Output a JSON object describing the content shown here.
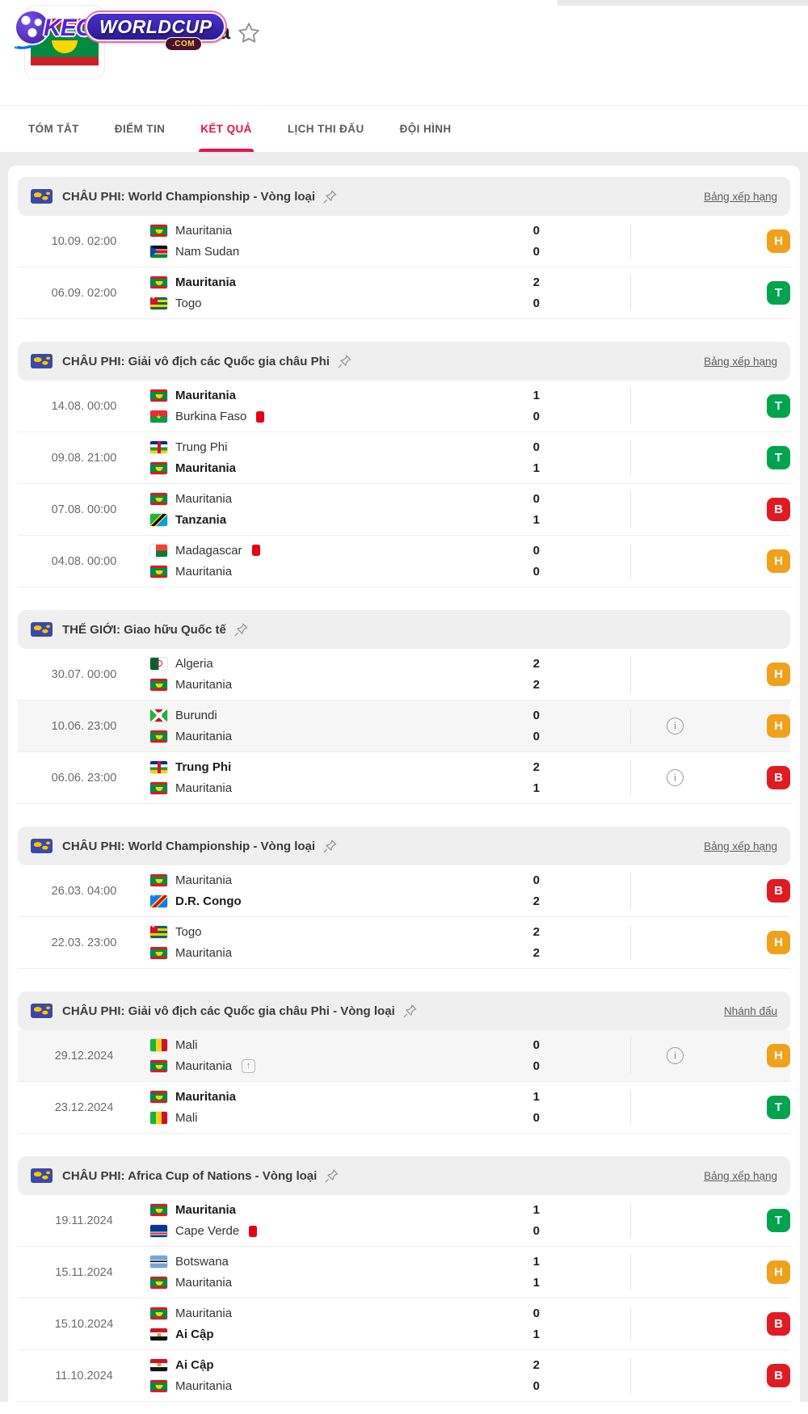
{
  "logo": {
    "keo": "KEO",
    "worldcup": "WORLDCUP",
    "com": ".COM"
  },
  "header": {
    "team_name": "Mauritania"
  },
  "icons": {
    "favorite": "star-outline-icon",
    "pin": "pushpin-icon",
    "info": "info-circle-icon",
    "red_card": "red-card-icon",
    "promotion": "up-arrow-box-icon",
    "region": "world-map-icon"
  },
  "colors": {
    "accent": "#ed0f4f",
    "section_bg": "#efefef",
    "page_band": "#ececec"
  },
  "badge_colors": {
    "H": "#f0a11c",
    "T": "#00a44e",
    "B": "#e11b22"
  },
  "badge_legend": {
    "T": "win",
    "H": "draw",
    "B": "loss"
  },
  "tabs": [
    {
      "label": "TÓM TẮT",
      "active": false
    },
    {
      "label": "ĐIỂM TIN",
      "active": false
    },
    {
      "label": "KẾT QUẢ",
      "active": true
    },
    {
      "label": "LỊCH THI ĐẤU",
      "active": false
    },
    {
      "label": "ĐỘI HÌNH",
      "active": false
    }
  ],
  "sections": [
    {
      "title": "CHÂU PHI: World Championship - Vòng loại",
      "link": "Bảng xếp hạng",
      "matches": [
        {
          "date": "10.09. 02:00",
          "home": {
            "name": "Mauritania",
            "flag": "mr",
            "bold": false,
            "red_card": false,
            "promo": false
          },
          "away": {
            "name": "Nam Sudan",
            "flag": "ss",
            "bold": false,
            "red_card": false,
            "promo": false
          },
          "home_score": "0",
          "away_score": "0",
          "info": false,
          "result": "H",
          "highlight": false
        },
        {
          "date": "06.09. 02:00",
          "home": {
            "name": "Mauritania",
            "flag": "mr",
            "bold": true,
            "red_card": false,
            "promo": false
          },
          "away": {
            "name": "Togo",
            "flag": "tg",
            "bold": false,
            "red_card": false,
            "promo": false
          },
          "home_score": "2",
          "away_score": "0",
          "info": false,
          "result": "T",
          "highlight": false
        }
      ]
    },
    {
      "title": "CHÂU PHI: Giải vô địch các Quốc gia châu Phi",
      "link": "Bảng xếp hạng",
      "matches": [
        {
          "date": "14.08. 00:00",
          "home": {
            "name": "Mauritania",
            "flag": "mr",
            "bold": true,
            "red_card": false,
            "promo": false
          },
          "away": {
            "name": "Burkina Faso",
            "flag": "bf",
            "bold": false,
            "red_card": true,
            "promo": false
          },
          "home_score": "1",
          "away_score": "0",
          "info": false,
          "result": "T",
          "highlight": false
        },
        {
          "date": "09.08. 21:00",
          "home": {
            "name": "Trung Phi",
            "flag": "cf",
            "bold": false,
            "red_card": false,
            "promo": false
          },
          "away": {
            "name": "Mauritania",
            "flag": "mr",
            "bold": true,
            "red_card": false,
            "promo": false
          },
          "home_score": "0",
          "away_score": "1",
          "info": false,
          "result": "T",
          "highlight": false
        },
        {
          "date": "07.08. 00:00",
          "home": {
            "name": "Mauritania",
            "flag": "mr",
            "bold": false,
            "red_card": false,
            "promo": false
          },
          "away": {
            "name": "Tanzania",
            "flag": "tz",
            "bold": true,
            "red_card": false,
            "promo": false
          },
          "home_score": "0",
          "away_score": "1",
          "info": false,
          "result": "B",
          "highlight": false
        },
        {
          "date": "04.08. 00:00",
          "home": {
            "name": "Madagascar",
            "flag": "mg",
            "bold": false,
            "red_card": true,
            "promo": false
          },
          "away": {
            "name": "Mauritania",
            "flag": "mr",
            "bold": false,
            "red_card": false,
            "promo": false
          },
          "home_score": "0",
          "away_score": "0",
          "info": false,
          "result": "H",
          "highlight": false
        }
      ]
    },
    {
      "title": "THẾ GIỚI: Giao hữu Quốc tế",
      "link": null,
      "matches": [
        {
          "date": "30.07. 00:00",
          "home": {
            "name": "Algeria",
            "flag": "dz",
            "bold": false,
            "red_card": false,
            "promo": false
          },
          "away": {
            "name": "Mauritania",
            "flag": "mr",
            "bold": false,
            "red_card": false,
            "promo": false
          },
          "home_score": "2",
          "away_score": "2",
          "info": false,
          "result": "H",
          "highlight": false
        },
        {
          "date": "10.06. 23:00",
          "home": {
            "name": "Burundi",
            "flag": "bi",
            "bold": false,
            "red_card": false,
            "promo": false
          },
          "away": {
            "name": "Mauritania",
            "flag": "mr",
            "bold": false,
            "red_card": false,
            "promo": false
          },
          "home_score": "0",
          "away_score": "0",
          "info": true,
          "result": "H",
          "highlight": true
        },
        {
          "date": "06.06. 23:00",
          "home": {
            "name": "Trung Phi",
            "flag": "cf",
            "bold": true,
            "red_card": false,
            "promo": false
          },
          "away": {
            "name": "Mauritania",
            "flag": "mr",
            "bold": false,
            "red_card": false,
            "promo": false
          },
          "home_score": "2",
          "away_score": "1",
          "info": true,
          "result": "B",
          "highlight": false
        }
      ]
    },
    {
      "title": "CHÂU PHI: World Championship - Vòng loại",
      "link": "Bảng xếp hạng",
      "matches": [
        {
          "date": "26.03. 04:00",
          "home": {
            "name": "Mauritania",
            "flag": "mr",
            "bold": false,
            "red_card": false,
            "promo": false
          },
          "away": {
            "name": "D.R. Congo",
            "flag": "cd",
            "bold": true,
            "red_card": false,
            "promo": false
          },
          "home_score": "0",
          "away_score": "2",
          "info": false,
          "result": "B",
          "highlight": false
        },
        {
          "date": "22.03. 23:00",
          "home": {
            "name": "Togo",
            "flag": "tg",
            "bold": false,
            "red_card": false,
            "promo": false
          },
          "away": {
            "name": "Mauritania",
            "flag": "mr",
            "bold": false,
            "red_card": false,
            "promo": false
          },
          "home_score": "2",
          "away_score": "2",
          "info": false,
          "result": "H",
          "highlight": false
        }
      ]
    },
    {
      "title": "CHÂU PHI: Giải vô địch các Quốc gia châu Phi - Vòng loại",
      "link": "Nhánh đấu",
      "matches": [
        {
          "date": "29.12.2024",
          "home": {
            "name": "Mali",
            "flag": "ml",
            "bold": false,
            "red_card": false,
            "promo": false
          },
          "away": {
            "name": "Mauritania",
            "flag": "mr",
            "bold": false,
            "red_card": false,
            "promo": true
          },
          "home_score": "0",
          "away_score": "0",
          "info": true,
          "result": "H",
          "highlight": true
        },
        {
          "date": "23.12.2024",
          "home": {
            "name": "Mauritania",
            "flag": "mr",
            "bold": true,
            "red_card": false,
            "promo": false
          },
          "away": {
            "name": "Mali",
            "flag": "ml",
            "bold": false,
            "red_card": false,
            "promo": false
          },
          "home_score": "1",
          "away_score": "0",
          "info": false,
          "result": "T",
          "highlight": false
        }
      ]
    },
    {
      "title": "CHÂU PHI: Africa Cup of Nations - Vòng loại",
      "link": "Bảng xếp hạng",
      "matches": [
        {
          "date": "19.11.2024",
          "home": {
            "name": "Mauritania",
            "flag": "mr",
            "bold": true,
            "red_card": false,
            "promo": false
          },
          "away": {
            "name": "Cape Verde",
            "flag": "cv",
            "bold": false,
            "red_card": true,
            "promo": false
          },
          "home_score": "1",
          "away_score": "0",
          "info": false,
          "result": "T",
          "highlight": false
        },
        {
          "date": "15.11.2024",
          "home": {
            "name": "Botswana",
            "flag": "bw",
            "bold": false,
            "red_card": false,
            "promo": false
          },
          "away": {
            "name": "Mauritania",
            "flag": "mr",
            "bold": false,
            "red_card": false,
            "promo": false
          },
          "home_score": "1",
          "away_score": "1",
          "info": false,
          "result": "H",
          "highlight": false
        },
        {
          "date": "15.10.2024",
          "home": {
            "name": "Mauritania",
            "flag": "mr",
            "bold": false,
            "red_card": false,
            "promo": false
          },
          "away": {
            "name": "Ai Cập",
            "flag": "eg",
            "bold": true,
            "red_card": false,
            "promo": false
          },
          "home_score": "0",
          "away_score": "1",
          "info": false,
          "result": "B",
          "highlight": false
        },
        {
          "date": "11.10.2024",
          "home": {
            "name": "Ai Cập",
            "flag": "eg",
            "bold": true,
            "red_card": false,
            "promo": false
          },
          "away": {
            "name": "Mauritania",
            "flag": "mr",
            "bold": false,
            "red_card": false,
            "promo": false
          },
          "home_score": "2",
          "away_score": "0",
          "info": false,
          "result": "B",
          "highlight": false
        }
      ]
    }
  ]
}
